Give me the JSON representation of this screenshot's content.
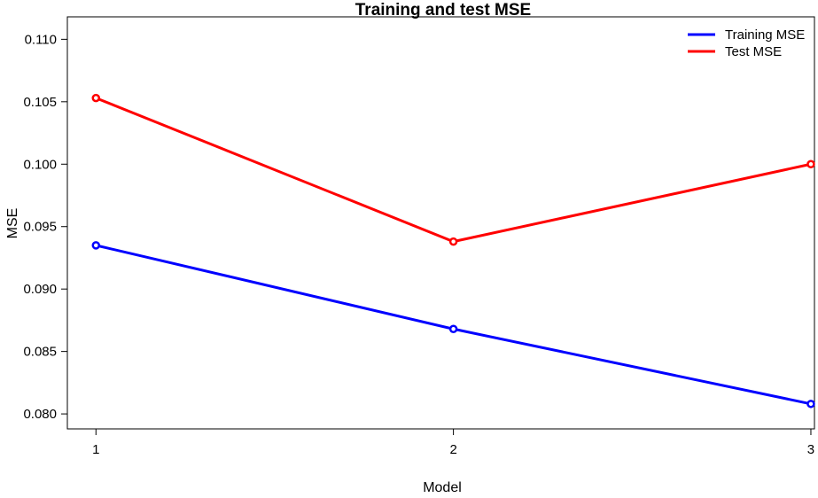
{
  "chart_data": {
    "type": "line",
    "title": "Training and test MSE",
    "xlabel": "Model",
    "ylabel": "MSE",
    "x": [
      1,
      2,
      3
    ],
    "x_tick_labels": [
      "1",
      "2",
      "3"
    ],
    "y_tick_labels": [
      "0.080",
      "0.085",
      "0.090",
      "0.095",
      "0.100",
      "0.105",
      "0.110"
    ],
    "y_ticks": [
      0.08,
      0.085,
      0.09,
      0.095,
      0.1,
      0.105,
      0.11
    ],
    "xlim": [
      0.92,
      3.01
    ],
    "ylim": [
      0.0788,
      0.1118
    ],
    "grid": false,
    "legend_position": "top-right",
    "series": [
      {
        "name": "Training MSE",
        "color": "#0000ff",
        "values": [
          0.0935,
          0.0868,
          0.0808
        ]
      },
      {
        "name": "Test MSE",
        "color": "#ff0000",
        "values": [
          0.1053,
          0.0938,
          0.1
        ]
      }
    ]
  }
}
